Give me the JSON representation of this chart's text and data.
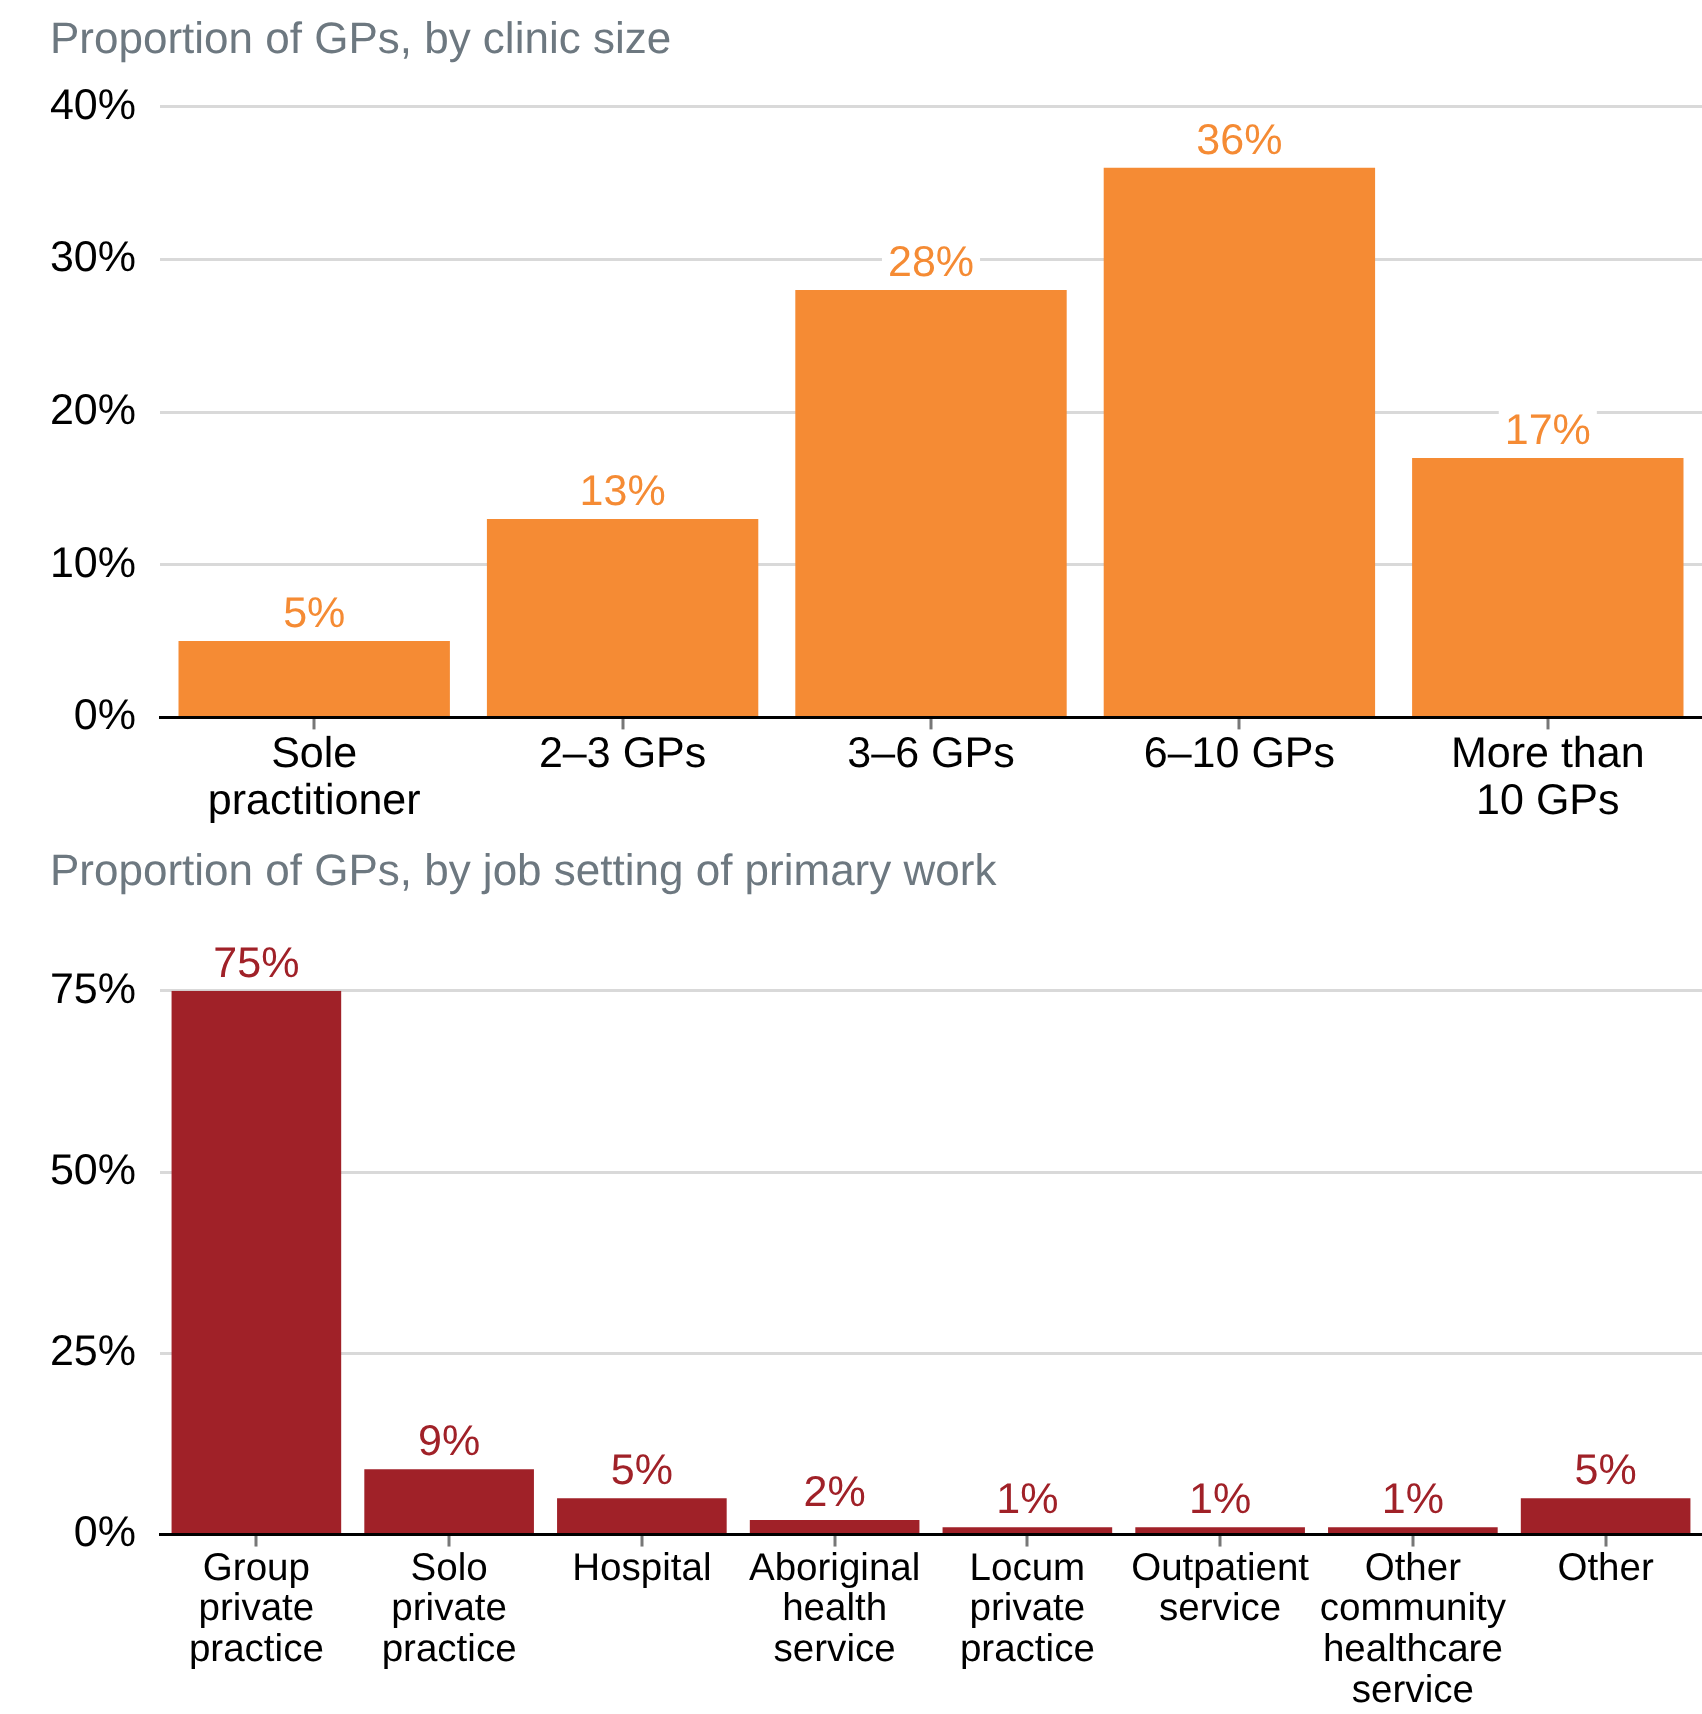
{
  "chart_data": [
    {
      "type": "bar",
      "title": "Proportion of GPs, by clinic size",
      "categories": [
        "Sole practitioner",
        "2–3 GPs",
        "3–6 GPs",
        "6–10 GPs",
        "More than 10 GPs"
      ],
      "values": [
        5,
        13,
        28,
        36,
        17
      ],
      "color": "#f58b34",
      "value_labels": [
        "5%",
        "13%",
        "28%",
        "36%",
        "17%"
      ],
      "ylim": [
        0,
        40
      ],
      "yticks": [
        {
          "value": 0,
          "label": "0%"
        },
        {
          "value": 10,
          "label": "10%"
        },
        {
          "value": 20,
          "label": "20%"
        },
        {
          "value": 30,
          "label": "30%"
        },
        {
          "value": 40,
          "label": "40%"
        }
      ],
      "grid": "y"
    },
    {
      "type": "bar",
      "title": "Proportion of GPs, by job setting of primary work",
      "categories": [
        "Group private practice",
        "Solo private practice",
        "Hospital",
        "Aboriginal health service",
        "Locum private practice",
        "Outpatient service",
        "Other community healthcare service",
        "Other"
      ],
      "values": [
        75,
        9,
        5,
        2,
        1,
        1,
        1,
        5
      ],
      "color": "#a02128",
      "value_labels": [
        "75%",
        "9%",
        "5%",
        "2%",
        "1%",
        "1%",
        "1%",
        "5%"
      ],
      "ylim": [
        0,
        75
      ],
      "yticks": [
        {
          "value": 0,
          "label": "0%"
        },
        {
          "value": 25,
          "label": "25%"
        },
        {
          "value": 50,
          "label": "50%"
        },
        {
          "value": 75,
          "label": "75%"
        }
      ],
      "grid": "y"
    }
  ]
}
